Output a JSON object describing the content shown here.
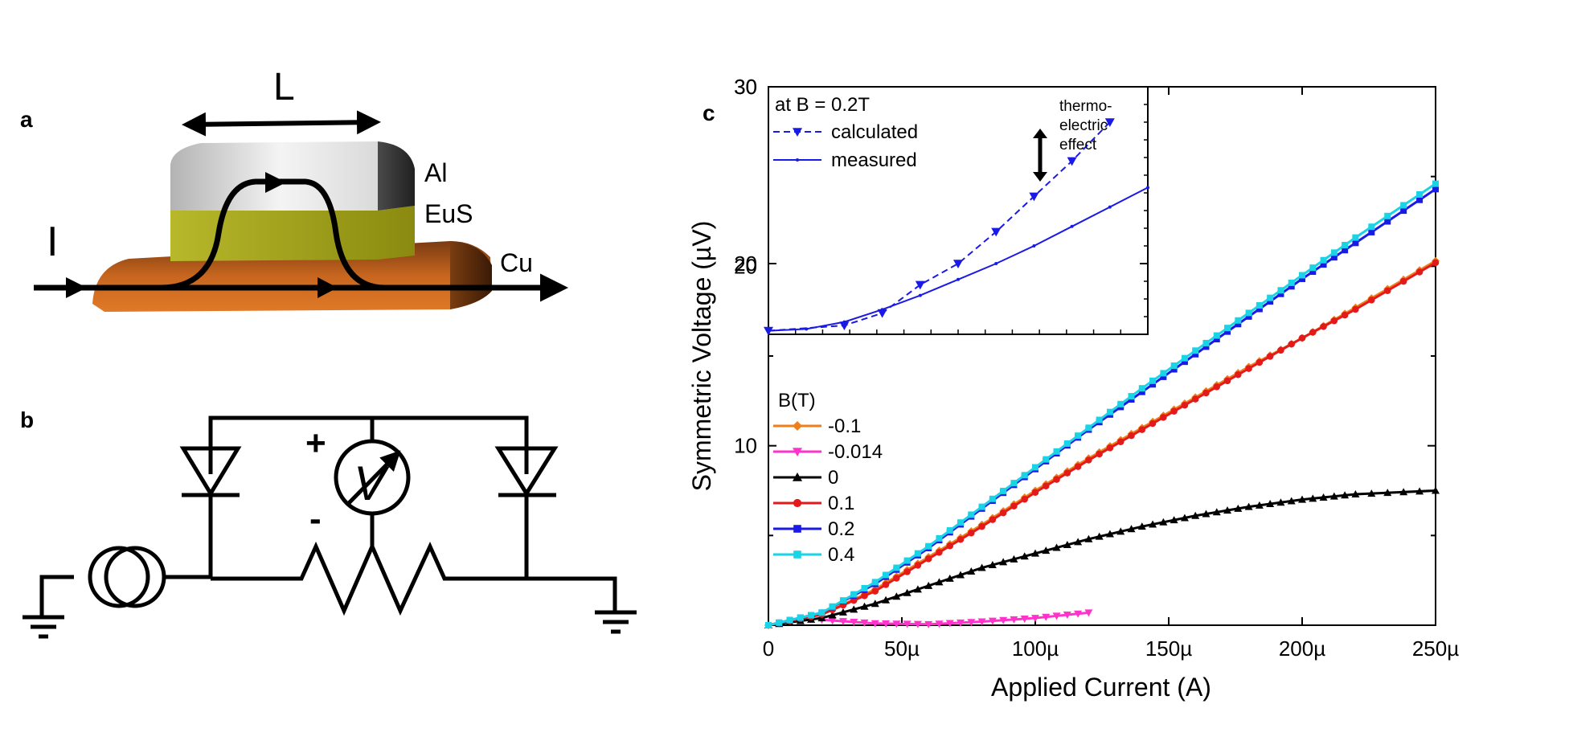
{
  "panels": {
    "a": "a",
    "b": "b",
    "c": "c"
  },
  "device": {
    "length_label": "L",
    "current_label": "I",
    "layer_labels": [
      "Al",
      "EuS",
      "Cu"
    ],
    "colors": {
      "al": "#c9c9c9",
      "eus": "#9b9a1c",
      "cu": "#c8661f"
    }
  },
  "circuit": {
    "plus": "+",
    "minus": "-"
  },
  "chart_data": [
    {
      "type": "line",
      "xlabel": "Applied Current (A)",
      "ylabel": "Symmetric Voltage (µV)",
      "xlim": [
        0,
        0.00025
      ],
      "ylim": [
        0,
        30
      ],
      "xticks": [
        0,
        5e-05,
        0.0001,
        0.00015,
        0.0002,
        0.00025
      ],
      "xtick_labels": [
        "0",
        "50µ",
        "100µ",
        "150µ",
        "200µ",
        "250µ"
      ],
      "yticks": [
        10,
        20,
        30
      ],
      "ytick_labels": [
        "10",
        "20",
        "30"
      ],
      "legend_title": "B(T)",
      "legend_position": "left",
      "series": [
        {
          "name": "-0.1",
          "color": "#f07f1a",
          "marker": "diamond",
          "x": [
            0,
            2e-05,
            4e-05,
            6e-05,
            8e-05,
            0.0001,
            0.00012,
            0.00014,
            0.00016,
            0.00018,
            0.0002,
            0.00022,
            0.00025
          ],
          "y": [
            0,
            0.6,
            2.0,
            3.8,
            5.6,
            7.5,
            9.3,
            11.0,
            12.7,
            14.4,
            16.0,
            17.7,
            20.3
          ]
        },
        {
          "name": "-0.014",
          "color": "#ff33cc",
          "marker": "triangle-down",
          "x": [
            2e-05,
            4e-05,
            6e-05,
            8e-05,
            0.0001,
            0.00012
          ],
          "y": [
            0.3,
            0.1,
            0.05,
            0.2,
            0.4,
            0.7
          ]
        },
        {
          "name": "0",
          "color": "#000000",
          "marker": "triangle-up",
          "x": [
            0,
            2e-05,
            4e-05,
            6e-05,
            8e-05,
            0.0001,
            0.00012,
            0.00014,
            0.00016,
            0.00018,
            0.0002,
            0.00022,
            0.00025
          ],
          "y": [
            0,
            0.4,
            1.2,
            2.2,
            3.2,
            4.0,
            4.8,
            5.5,
            6.1,
            6.6,
            7.0,
            7.3,
            7.5
          ]
        },
        {
          "name": "0.1",
          "color": "#e41a1a",
          "marker": "circle",
          "x": [
            0,
            2e-05,
            4e-05,
            6e-05,
            8e-05,
            0.0001,
            0.00012,
            0.00014,
            0.00016,
            0.00018,
            0.0002,
            0.00022,
            0.00025
          ],
          "y": [
            0,
            0.6,
            1.9,
            3.7,
            5.5,
            7.4,
            9.2,
            10.9,
            12.6,
            14.3,
            16.0,
            17.6,
            20.2
          ]
        },
        {
          "name": "0.2",
          "color": "#1a1ae6",
          "marker": "square",
          "x": [
            0,
            2e-05,
            4e-05,
            6e-05,
            8e-05,
            0.0001,
            0.00012,
            0.00014,
            0.00016,
            0.00018,
            0.0002,
            0.00022,
            0.00025
          ],
          "y": [
            0,
            0.7,
            2.3,
            4.3,
            6.5,
            8.7,
            10.9,
            13.0,
            15.1,
            17.2,
            19.3,
            21.3,
            24.3
          ]
        },
        {
          "name": "0.4",
          "color": "#19d3e6",
          "marker": "square",
          "x": [
            0,
            2e-05,
            4e-05,
            6e-05,
            8e-05,
            0.0001,
            0.00012,
            0.00014,
            0.00016,
            0.00018,
            0.0002,
            0.00022,
            0.00025
          ],
          "y": [
            0,
            0.7,
            2.4,
            4.4,
            6.6,
            8.8,
            11.0,
            13.2,
            15.3,
            17.4,
            19.5,
            21.6,
            24.6
          ]
        }
      ]
    },
    {
      "type": "line",
      "inset": true,
      "xlim": [
        0,
        0.0001
      ],
      "ylim": [
        16,
        30
      ],
      "yticks": [
        20,
        30
      ],
      "ytick_labels": [
        "20",
        "30"
      ],
      "legend_title": "at B = 0.2T",
      "annotation": "thermo-\nelectric\neffect",
      "series": [
        {
          "name": "calculated",
          "color": "#1a1ae6",
          "style": "dashed",
          "marker": "triangle-down",
          "x": [
            0,
            2e-05,
            3e-05,
            4e-05,
            5e-05,
            6e-05,
            7e-05,
            8e-05,
            9e-05
          ],
          "y": [
            16.2,
            16.5,
            17.2,
            18.8,
            20.0,
            21.8,
            23.8,
            25.8,
            28.0
          ]
        },
        {
          "name": "measured",
          "color": "#1a1ae6",
          "style": "solid",
          "marker": "dot",
          "x": [
            0,
            1e-05,
            2e-05,
            3e-05,
            4e-05,
            5e-05,
            6e-05,
            7e-05,
            8e-05,
            9e-05,
            0.0001
          ],
          "y": [
            16.2,
            16.3,
            16.7,
            17.4,
            18.2,
            19.1,
            20.0,
            21.0,
            22.1,
            23.2,
            24.3
          ]
        }
      ]
    }
  ]
}
